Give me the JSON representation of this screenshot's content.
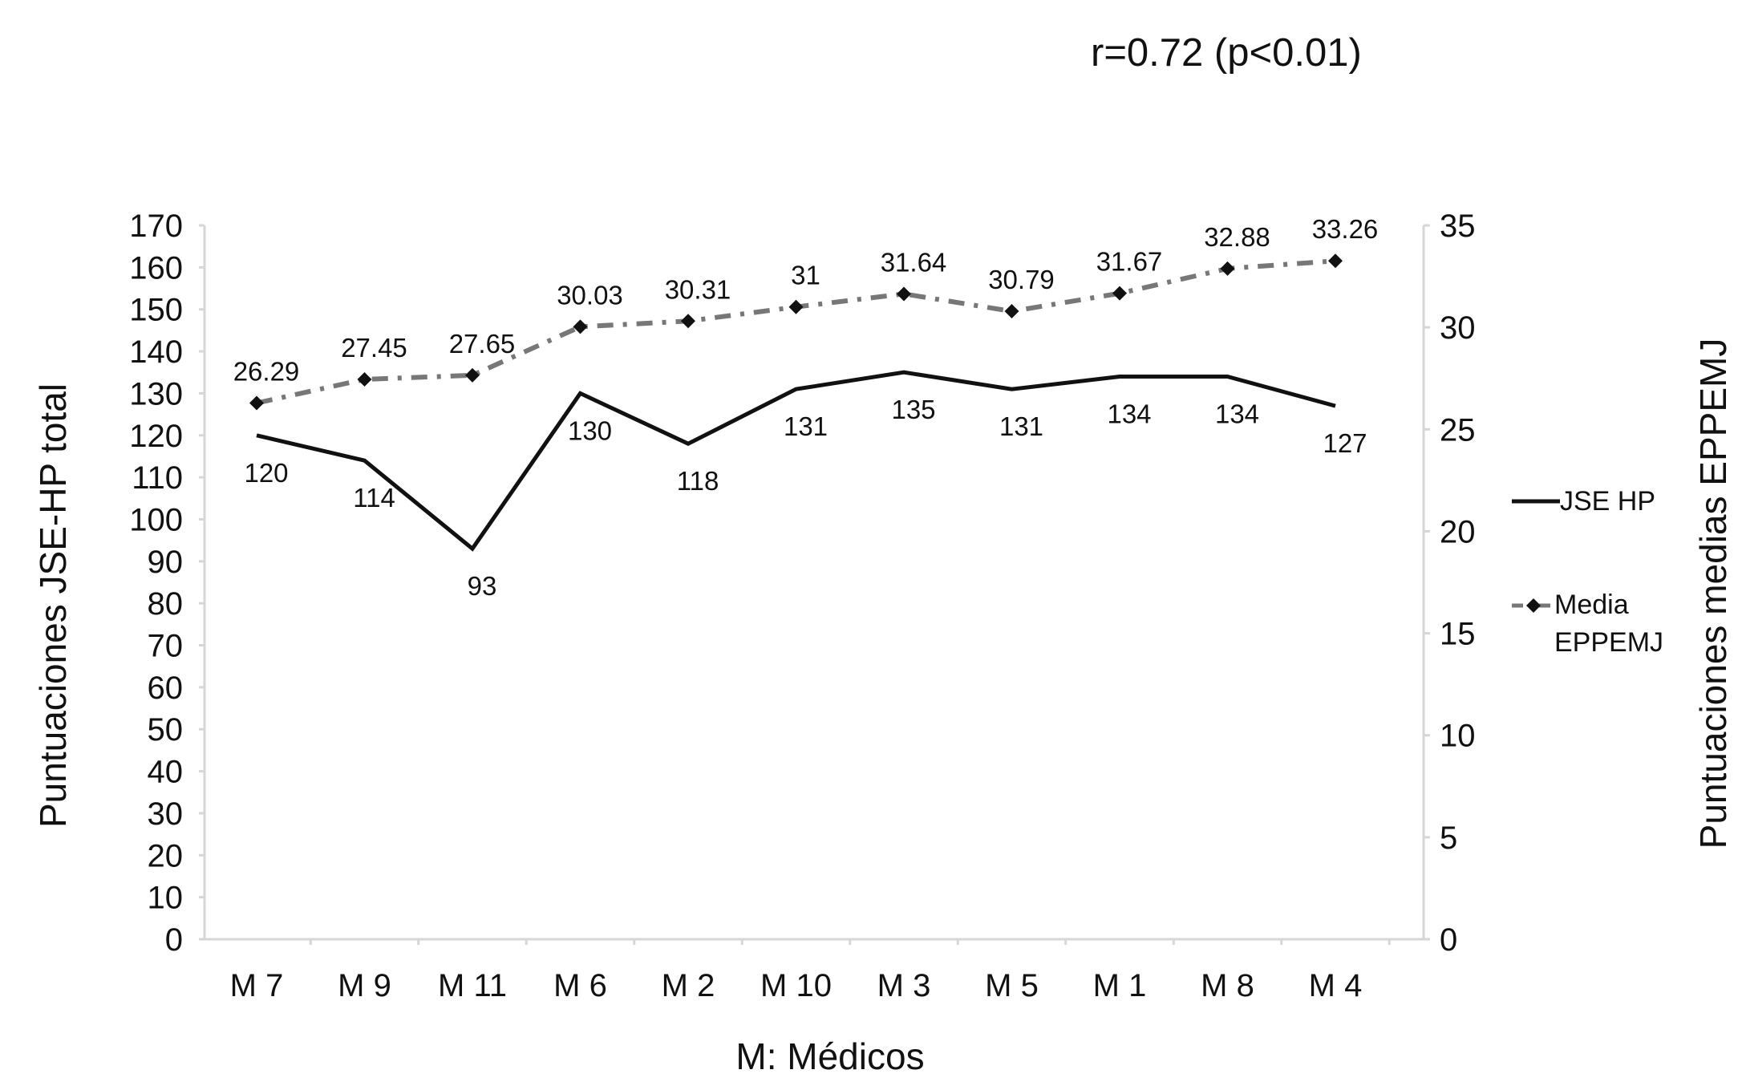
{
  "chart_data": {
    "type": "line",
    "annotation": "r=0.72 (p<0.01)",
    "xlabel": "M: Médicos",
    "ylabel_left": "Puntuaciones JSE-HP total",
    "ylabel_right": "Puntuaciones medias EPPEMJ",
    "categories": [
      "M 7",
      "M 9",
      "M 11",
      "M 6",
      "M 2",
      "M 10",
      "M 3",
      "M 5",
      "M 1",
      "M 8",
      "M 4"
    ],
    "y_left": {
      "min": 0,
      "max": 170,
      "step": 10,
      "ticks": [
        "0",
        "10",
        "20",
        "30",
        "40",
        "50",
        "60",
        "70",
        "80",
        "90",
        "100",
        "110",
        "120",
        "130",
        "140",
        "150",
        "160",
        "170"
      ]
    },
    "y_right": {
      "min": 0,
      "max": 35,
      "step": 5,
      "ticks": [
        "0",
        "5",
        "10",
        "15",
        "20",
        "25",
        "30",
        "35"
      ]
    },
    "series": [
      {
        "name": "JSE HP",
        "axis": "left",
        "style": "solid",
        "color": "#111111",
        "values": [
          120,
          114,
          93,
          130,
          118,
          131,
          135,
          131,
          134,
          134,
          127
        ],
        "labels": [
          "120",
          "114",
          "93",
          "130",
          "118",
          "131",
          "135",
          "131",
          "134",
          "134",
          "127"
        ]
      },
      {
        "name": "Media EPPEMJ",
        "axis": "right",
        "style": "dash-dot",
        "marker": "diamond",
        "color": "#777777",
        "values": [
          26.29,
          27.45,
          27.65,
          30.03,
          30.31,
          31,
          31.64,
          30.79,
          31.67,
          32.88,
          33.26
        ],
        "labels": [
          "26.29",
          "27.45",
          "27.65",
          "30.03",
          "30.31",
          "31",
          "31.64",
          "30.79",
          "31.67",
          "32.88",
          "33.26"
        ]
      }
    ],
    "legend": {
      "position": "right",
      "entries": [
        "JSE HP",
        "Media",
        "EPPEMJ"
      ]
    },
    "grid": false
  }
}
